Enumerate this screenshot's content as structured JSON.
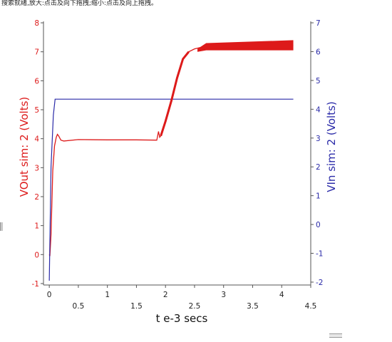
{
  "caption": "搜索就绪,放大:点击及向下拖拽;缩小:点击及向上拖拽。",
  "colors": {
    "vout": "#dd1a1a",
    "vin": "#2a2aa8",
    "axis": "#555555"
  },
  "chart_data": {
    "type": "line",
    "xlabel": "t e-3 secs",
    "y_left_label": "VOut sim: 2 (Volts)",
    "y_right_label": "VIn sim: 2 (Volts)",
    "xlim": [
      -0.1,
      4.5
    ],
    "y_left_lim": [
      -1.05,
      8.05
    ],
    "y_right_lim": [
      -2.1,
      7.05
    ],
    "x_ticks_low": [
      "0",
      "1",
      "2",
      "3",
      "4"
    ],
    "x_ticks_high": [
      "0.5",
      "1.5",
      "2.5",
      "3.5",
      "4.5"
    ],
    "y_left_ticks": [
      "-1",
      "0",
      "1",
      "2",
      "3",
      "4",
      "5",
      "6",
      "7",
      "8"
    ],
    "y_right_ticks": [
      "-2",
      "-1",
      "0",
      "1",
      "2",
      "3",
      "4",
      "5",
      "6",
      "7"
    ],
    "series": [
      {
        "name": "VOut sim: 2",
        "axis": "left",
        "ripple_band": [
          [
            2.55,
            7.0,
            7.1
          ],
          [
            2.7,
            7.05,
            7.3
          ],
          [
            4.2,
            7.05,
            7.4
          ]
        ],
        "points": [
          [
            0,
            0
          ],
          [
            0.01,
            -0.05
          ],
          [
            0.03,
            0.7
          ],
          [
            0.06,
            2.9
          ],
          [
            0.09,
            3.75
          ],
          [
            0.12,
            4.05
          ],
          [
            0.14,
            4.15
          ],
          [
            0.16,
            4.1
          ],
          [
            0.2,
            3.95
          ],
          [
            0.25,
            3.92
          ],
          [
            0.5,
            3.97
          ],
          [
            1.0,
            3.96
          ],
          [
            1.5,
            3.96
          ],
          [
            1.85,
            3.95
          ],
          [
            1.88,
            4.25
          ],
          [
            1.9,
            4.05
          ],
          [
            1.92,
            4.1
          ],
          [
            2.0,
            4.6
          ],
          [
            2.1,
            5.3
          ],
          [
            2.2,
            6.1
          ],
          [
            2.3,
            6.75
          ],
          [
            2.4,
            7.0
          ],
          [
            2.5,
            7.1
          ],
          [
            2.6,
            7.15
          ],
          [
            2.7,
            7.2
          ],
          [
            3.0,
            7.2
          ],
          [
            3.5,
            7.22
          ],
          [
            4.2,
            7.22
          ]
        ]
      },
      {
        "name": "VIn sim: 2",
        "axis": "right",
        "points": [
          [
            0,
            -1.95
          ],
          [
            0.03,
            2.0
          ],
          [
            0.07,
            3.8
          ],
          [
            0.1,
            4.35
          ],
          [
            4.2,
            4.35
          ]
        ]
      }
    ]
  }
}
